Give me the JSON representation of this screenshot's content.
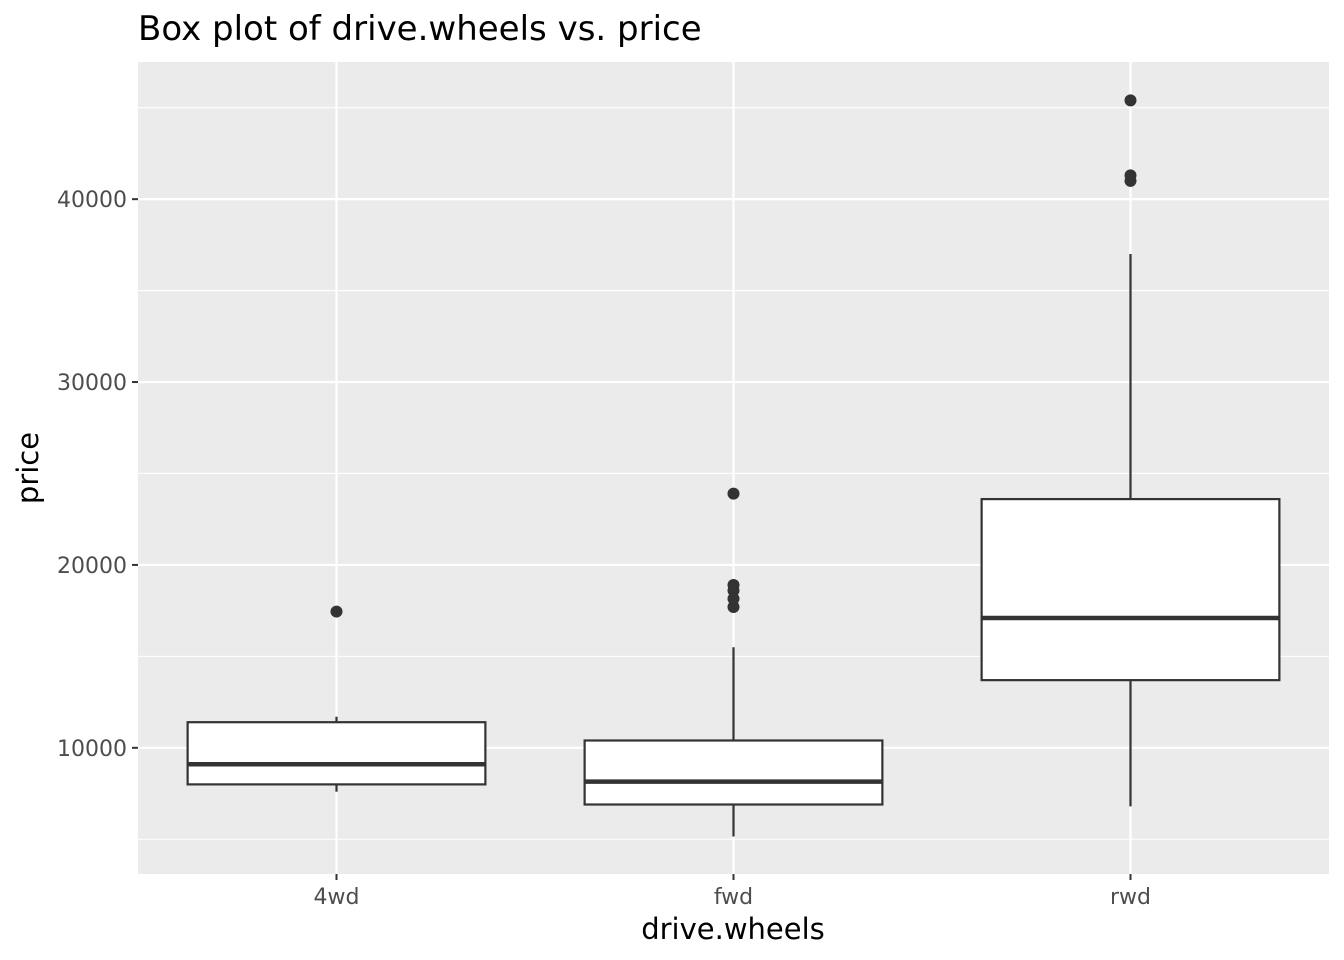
{
  "chart_data": {
    "type": "box",
    "title": "Box plot of drive.wheels vs. price",
    "xlabel": "drive.wheels",
    "ylabel": "price",
    "categories": [
      "4wd",
      "fwd",
      "rwd"
    ],
    "ylim": [
      3100,
      47500
    ],
    "yticks": [
      10000,
      20000,
      30000,
      40000
    ],
    "ytick_labels": [
      "10000",
      "20000",
      "30000",
      "40000"
    ],
    "grid": true,
    "boxes": [
      {
        "category": "4wd",
        "whisker_low": 7600,
        "q1": 8000,
        "median": 9100,
        "q3": 11400,
        "whisker_high": 11700,
        "outliers": [
          17450
        ]
      },
      {
        "category": "fwd",
        "whisker_low": 5150,
        "q1": 6900,
        "median": 8150,
        "q3": 10400,
        "whisker_high": 15500,
        "outliers": [
          17700,
          18150,
          18600,
          18900,
          23900
        ]
      },
      {
        "category": "rwd",
        "whisker_low": 6800,
        "q1": 13700,
        "median": 17100,
        "q3": 23600,
        "whisker_high": 37000,
        "outliers": [
          41000,
          41300,
          45400
        ]
      }
    ],
    "colors": {
      "panel": "#ebebeb",
      "grid": "#ffffff",
      "box_fill": "#ffffff",
      "box_stroke": "#333333",
      "outlier": "#333333"
    }
  }
}
